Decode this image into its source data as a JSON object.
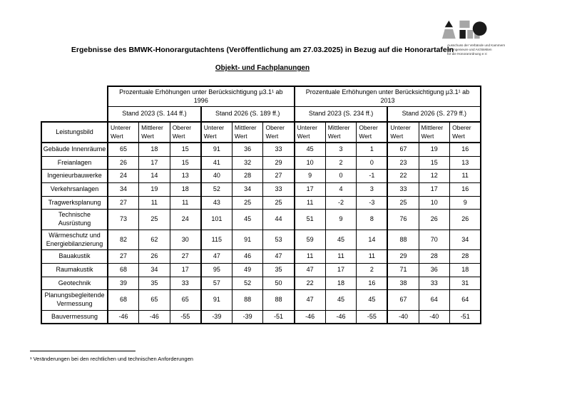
{
  "page": {
    "title": "Ergebnisse des BMWK-Honorargutachtens (Veröffentlichung am 27.03.2025) in Bezug auf die Honorartafeln",
    "subtitle": "Objekt- und Fachplanungen",
    "footnote": "¹ Veränderungen bei den rechtlichen und technischen Anforderungen"
  },
  "logo": {
    "name": "AHO",
    "caption_lines": [
      "Ausschuss der Verbände und Kammern",
      "der Ingenieure und Architekten",
      "für die Honorarordnung e.V."
    ],
    "colors": {
      "black": "#1a1a1a",
      "gray": "#a6a6a6"
    }
  },
  "table": {
    "corner_label": "Leistungsbild",
    "groups": [
      {
        "label": "Prozentuale Erhöhungen unter Berücksichtigung µ3.1¹ ab 1996",
        "stands": [
          "Stand 2023 (S. 144 ff.)",
          "Stand 2026 (S. 189 ff.)"
        ]
      },
      {
        "label": "Prozentuale Erhöhungen unter Berücksichtigung µ3.1¹ ab 2013",
        "stands": [
          "Stand 2023 (S. 234 ff.)",
          "Stand 2026 (S. 279 ff.)"
        ]
      }
    ],
    "value_headers": [
      "Unterer Wert",
      "Mittlerer Wert",
      "Oberer Wert"
    ],
    "rows": [
      {
        "label": "Gebäude Innenräume",
        "values": [
          65,
          18,
          15,
          91,
          36,
          33,
          45,
          3,
          1,
          67,
          19,
          16
        ]
      },
      {
        "label": "Freianlagen",
        "values": [
          26,
          17,
          15,
          41,
          32,
          29,
          10,
          2,
          0,
          23,
          15,
          13
        ]
      },
      {
        "label": "Ingenieurbauwerke",
        "values": [
          24,
          14,
          13,
          40,
          28,
          27,
          9,
          0,
          -1,
          22,
          12,
          11
        ]
      },
      {
        "label": "Verkehrsanlagen",
        "values": [
          34,
          19,
          18,
          52,
          34,
          33,
          17,
          4,
          3,
          33,
          17,
          16
        ]
      },
      {
        "label": "Tragwerksplanung",
        "values": [
          27,
          11,
          11,
          43,
          25,
          25,
          11,
          -2,
          -3,
          25,
          10,
          9
        ]
      },
      {
        "label": "Technische Ausrüstung",
        "values": [
          73,
          25,
          24,
          101,
          45,
          44,
          51,
          9,
          8,
          76,
          26,
          26
        ]
      },
      {
        "label": "Wärmeschutz und Energiebilanzierung",
        "values": [
          82,
          62,
          30,
          115,
          91,
          53,
          59,
          45,
          14,
          88,
          70,
          34
        ]
      },
      {
        "label": "Bauakustik",
        "values": [
          27,
          26,
          27,
          47,
          46,
          47,
          11,
          11,
          11,
          29,
          28,
          28
        ]
      },
      {
        "label": "Raumakustik",
        "values": [
          68,
          34,
          17,
          95,
          49,
          35,
          47,
          17,
          2,
          71,
          36,
          18
        ]
      },
      {
        "label": "Geotechnik",
        "values": [
          39,
          35,
          33,
          57,
          52,
          50,
          22,
          18,
          16,
          38,
          33,
          31
        ]
      },
      {
        "label": "Planungsbegleitende Vermessung",
        "values": [
          68,
          65,
          65,
          91,
          88,
          88,
          47,
          45,
          45,
          67,
          64,
          64
        ]
      },
      {
        "label": "Bauvermessung",
        "values": [
          -46,
          -46,
          -55,
          -39,
          -39,
          -51,
          -46,
          -46,
          -55,
          -40,
          -40,
          -51
        ]
      }
    ]
  }
}
